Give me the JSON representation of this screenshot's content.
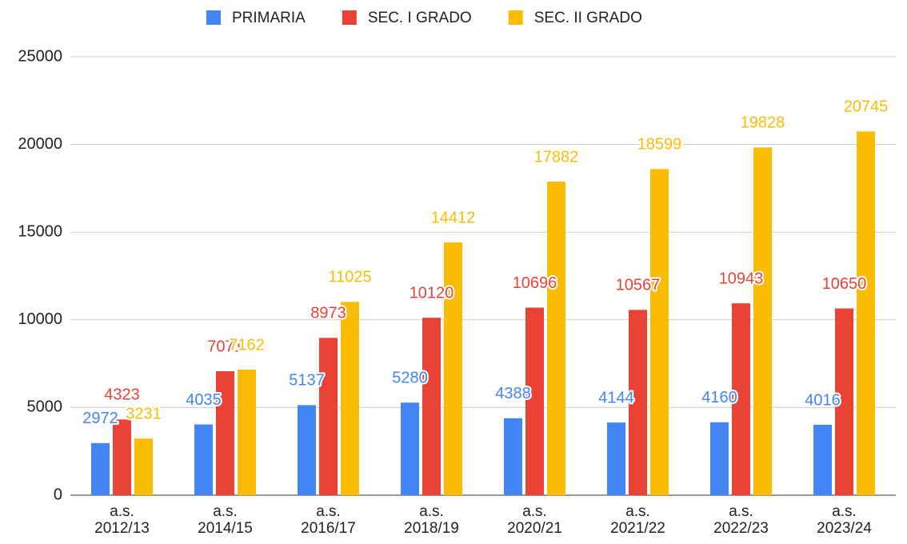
{
  "chart_data": {
    "type": "bar",
    "categories": [
      "a.s. 2012/13",
      "a.s. 2014/15",
      "a.s. 2016/17",
      "a.s. 2018/19",
      "a.s. 2020/21",
      "a.s. 2021/22",
      "a.s. 2022/23",
      "a.s. 2023/24"
    ],
    "series": [
      {
        "name": "PRIMARIA",
        "color": "#4285f4",
        "values": [
          2972,
          4035,
          5137,
          5280,
          4388,
          4144,
          4160,
          4016
        ]
      },
      {
        "name": "SEC. I GRADO",
        "color": "#ea4335",
        "values": [
          4323,
          7071,
          8973,
          10120,
          10696,
          10567,
          10943,
          10650
        ]
      },
      {
        "name": "SEC. II GRADO",
        "color": "#fbbc04",
        "values": [
          3231,
          7162,
          11025,
          14412,
          17882,
          18599,
          19828,
          20745
        ]
      }
    ],
    "ylim": [
      0,
      25000
    ],
    "yticks": [
      0,
      5000,
      10000,
      15000,
      20000,
      25000
    ],
    "grid": true,
    "legend": "top"
  }
}
